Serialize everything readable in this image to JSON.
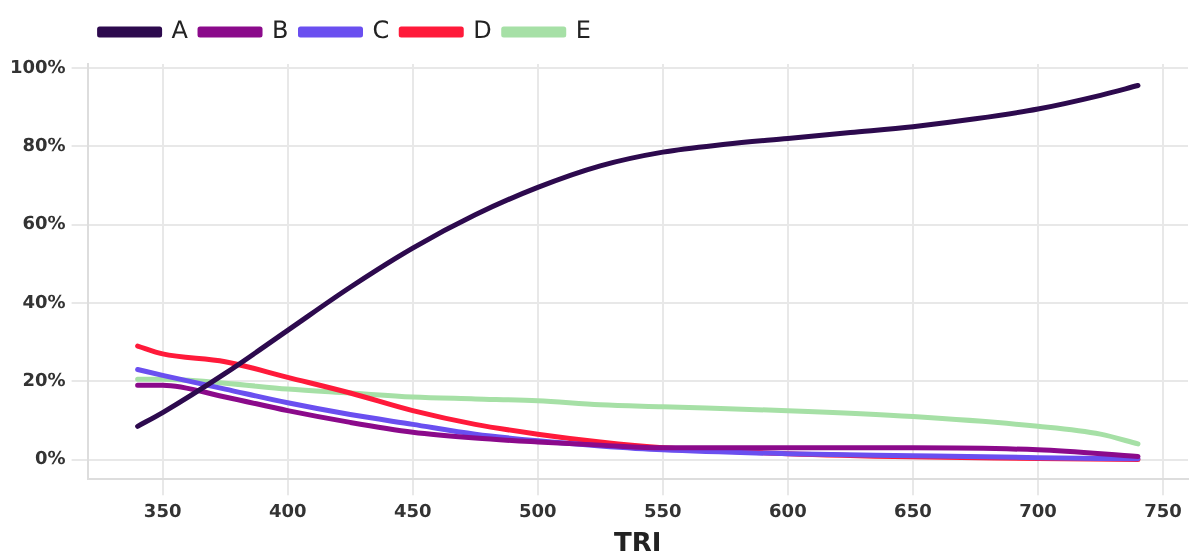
{
  "chart_data": {
    "type": "line",
    "xlabel": "TRI",
    "xlim": [
      320,
      760
    ],
    "xticks": [
      350,
      400,
      450,
      500,
      550,
      600,
      650,
      700,
      750
    ],
    "ylim": [
      -5,
      101
    ],
    "yticks": [
      {
        "value": 0,
        "label": "0%"
      },
      {
        "value": 20,
        "label": "20%"
      },
      {
        "value": 40,
        "label": "40%"
      },
      {
        "value": 60,
        "label": "60%"
      },
      {
        "value": 80,
        "label": "80%"
      },
      {
        "value": 100,
        "label": "100%"
      }
    ],
    "grid": true,
    "legend": "top left",
    "marker": "none",
    "line_style": "solid",
    "series": [
      {
        "name": "A",
        "color": "#2d0a4e",
        "x": [
          340,
          350,
          375,
          400,
          425,
          450,
          475,
          500,
          525,
          550,
          575,
          600,
          625,
          650,
          675,
          700,
          725,
          740
        ],
        "values": [
          8.5,
          12,
          22,
          33,
          44,
          54,
          62.5,
          69.5,
          75,
          78.5,
          80.5,
          82,
          83.5,
          85,
          87,
          89.5,
          93,
          95.5
        ]
      },
      {
        "name": "B",
        "color": "#8b0a8b",
        "x": [
          340,
          350,
          375,
          400,
          425,
          450,
          475,
          500,
          525,
          550,
          600,
          650,
          700,
          740
        ],
        "values": [
          19,
          19,
          16,
          12.5,
          9.5,
          7,
          5.5,
          4.5,
          3.7,
          3,
          3,
          3,
          2.5,
          0.8
        ]
      },
      {
        "name": "C",
        "color": "#6a4ff0",
        "x": [
          340,
          350,
          375,
          400,
          425,
          450,
          475,
          500,
          525,
          550,
          600,
          650,
          700,
          740
        ],
        "values": [
          23,
          21.5,
          18,
          14.5,
          11.5,
          9,
          6.5,
          4.8,
          3.5,
          2.5,
          1.5,
          1,
          0.5,
          0.2
        ]
      },
      {
        "name": "D",
        "color": "#ff1a3a",
        "x": [
          340,
          350,
          375,
          400,
          425,
          450,
          475,
          500,
          525,
          550,
          600,
          650,
          700,
          740
        ],
        "values": [
          29,
          27,
          25,
          21,
          17,
          12.5,
          9,
          6.5,
          4.5,
          3,
          1.5,
          0.7,
          0.3,
          0
        ]
      },
      {
        "name": "E",
        "color": "#a6e0a6",
        "x": [
          340,
          350,
          375,
          400,
          425,
          450,
          475,
          500,
          525,
          550,
          600,
          650,
          700,
          725,
          740
        ],
        "values": [
          20.5,
          20.5,
          19.5,
          18,
          17,
          16,
          15.5,
          15,
          14,
          13.5,
          12.5,
          11,
          8.5,
          6.5,
          4
        ]
      }
    ]
  }
}
